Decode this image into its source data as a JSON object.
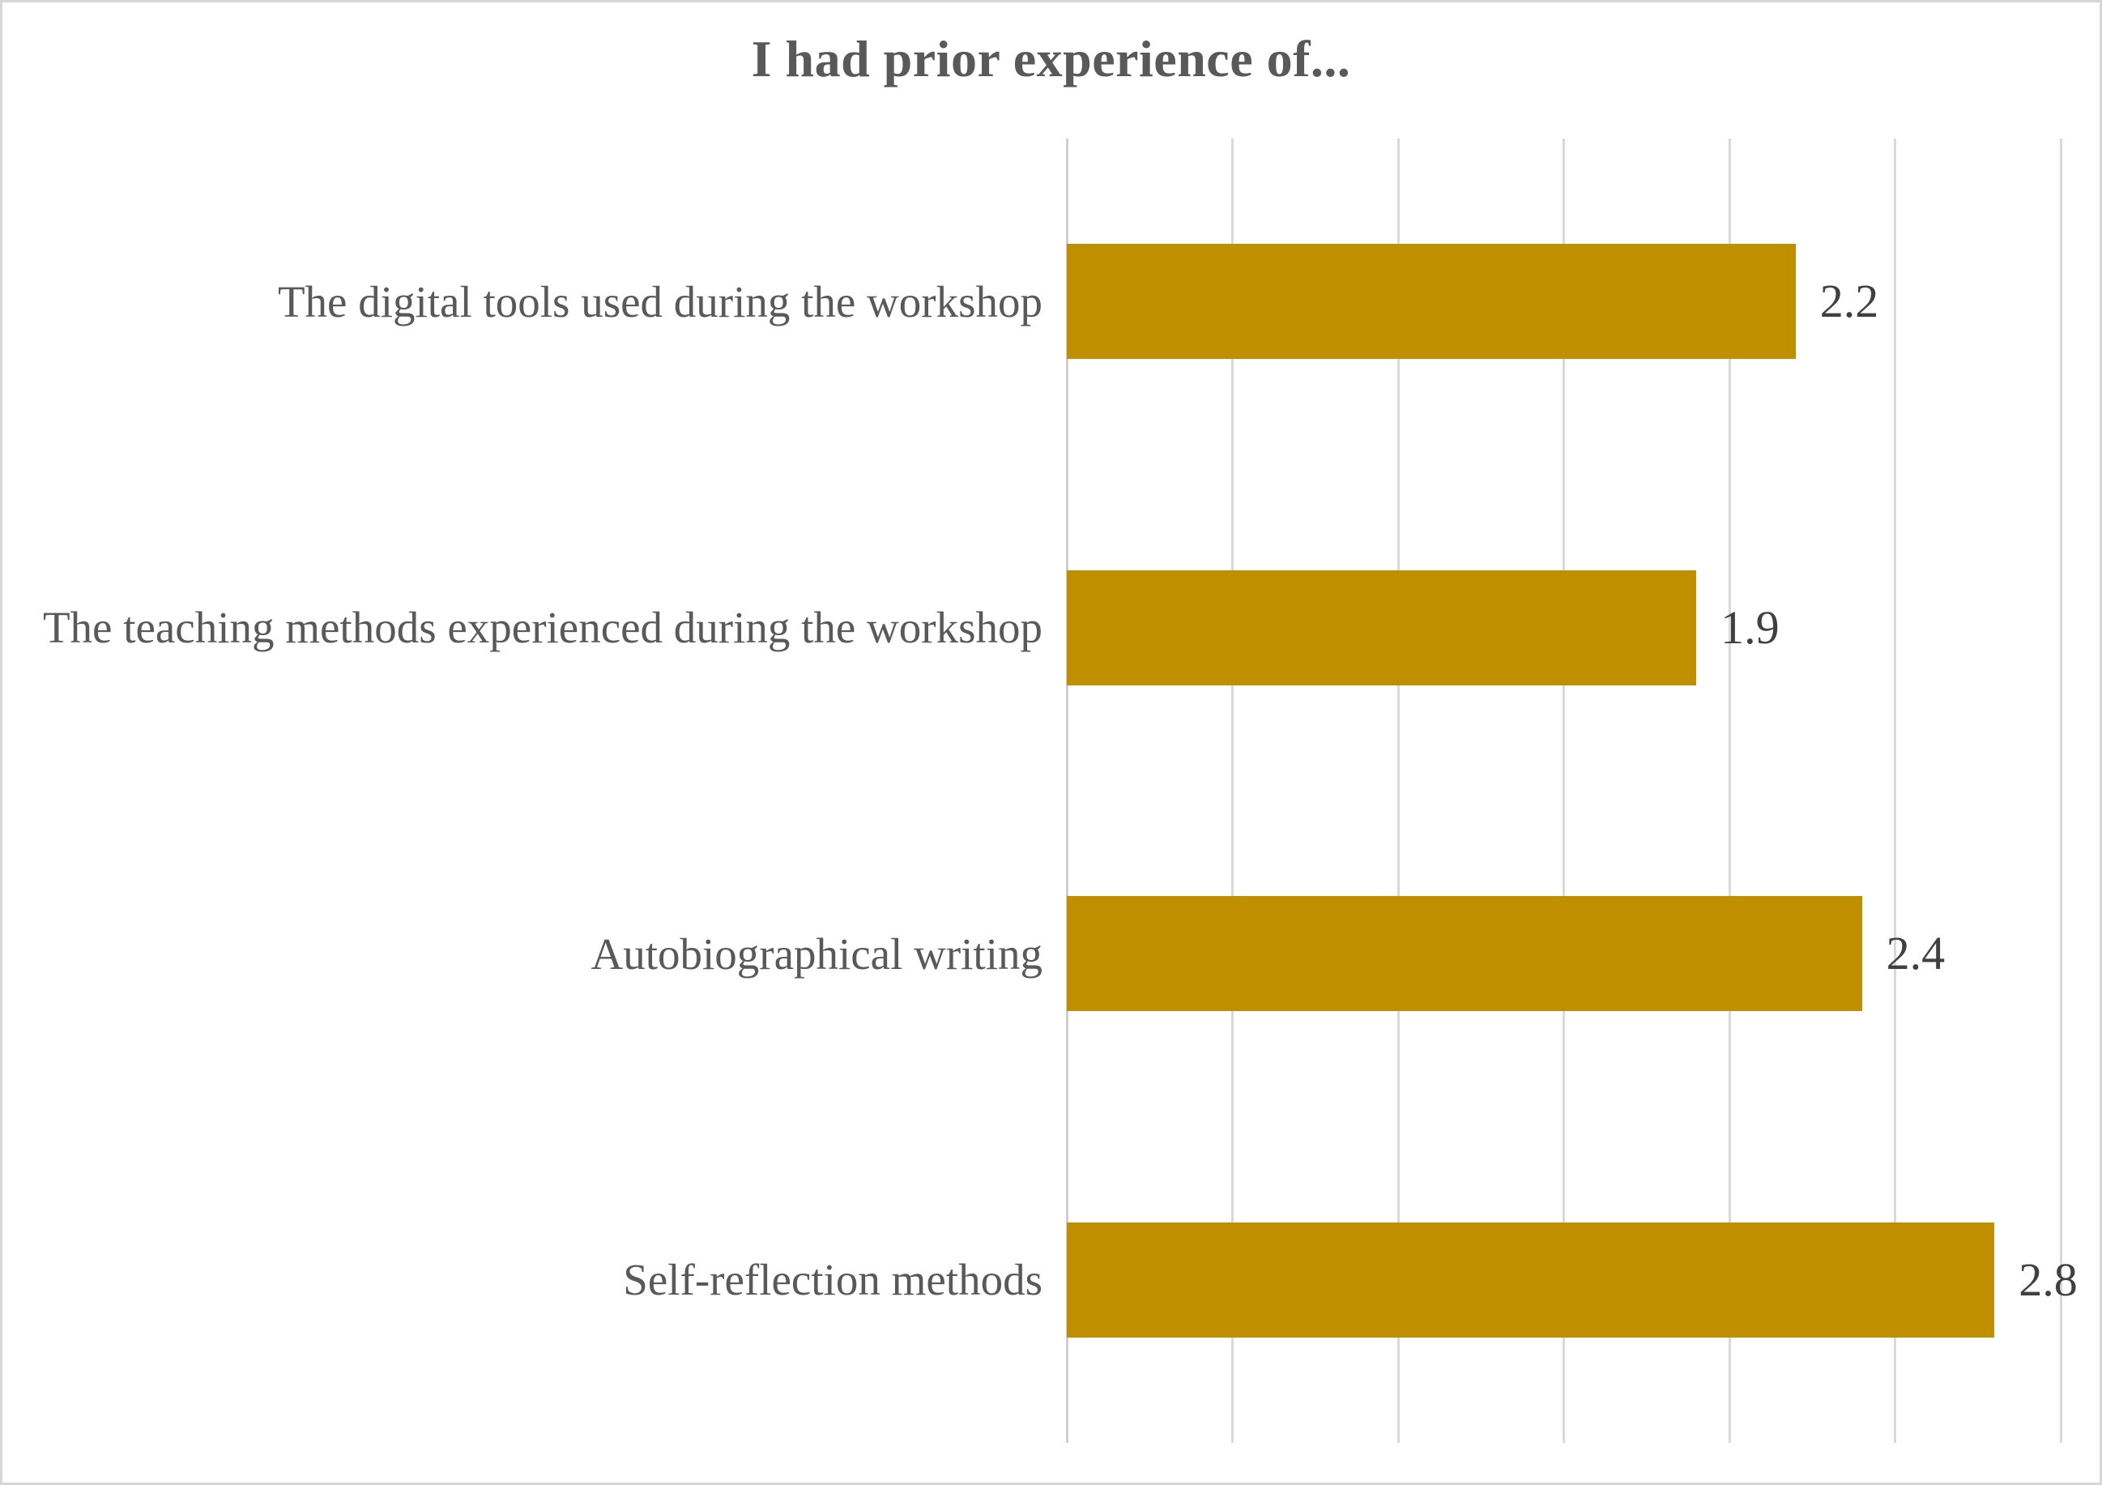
{
  "chart_data": {
    "type": "bar",
    "orientation": "horizontal",
    "title": "I had prior experience of...",
    "categories": [
      "The digital tools used during the workshop",
      "The teaching methods experienced during the workshop",
      "Autobiographical writing",
      "Self-reflection methods"
    ],
    "values": [
      2.2,
      1.9,
      2.4,
      2.8
    ],
    "value_labels": [
      "2.2",
      "1.9",
      "2.4",
      "2.8"
    ],
    "xlim": [
      0,
      3
    ],
    "gridline_interval": 0.5,
    "grid": true,
    "legend": "none",
    "axis_tick_labels_shown": false,
    "colors": {
      "bar": "#BF8F00",
      "text": "#595959",
      "value_text": "#404040",
      "gridline": "#D9D9D9",
      "axis_line": "#CFCFCF",
      "frame_border": "#D7D7D7",
      "background": "#FFFFFF"
    }
  }
}
